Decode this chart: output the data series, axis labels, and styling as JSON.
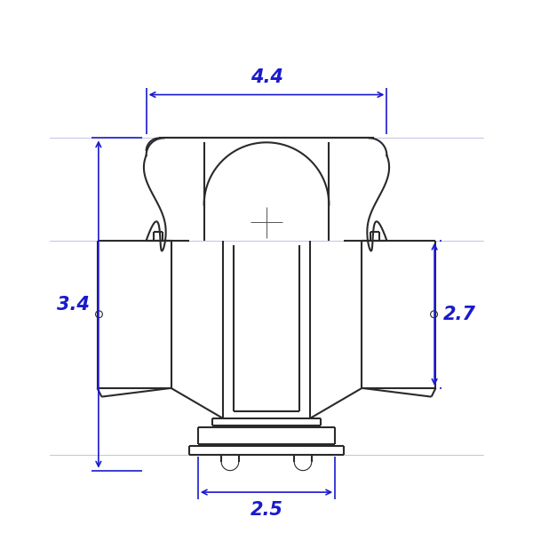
{
  "bg_color": "#ffffff",
  "draw_color": "#2a2a2a",
  "dim_color": "#1a1acc",
  "dim_lw": 1.2,
  "draw_lw": 1.5,
  "thin_lw": 0.8,
  "figsize": [
    6.0,
    6.0
  ],
  "dpi": 100,
  "dim_44_label": "4.4",
  "dim_34_label": "3.4",
  "dim_27_label": "2.7",
  "dim_25_label": "2.5",
  "dim_fontsize": 15
}
